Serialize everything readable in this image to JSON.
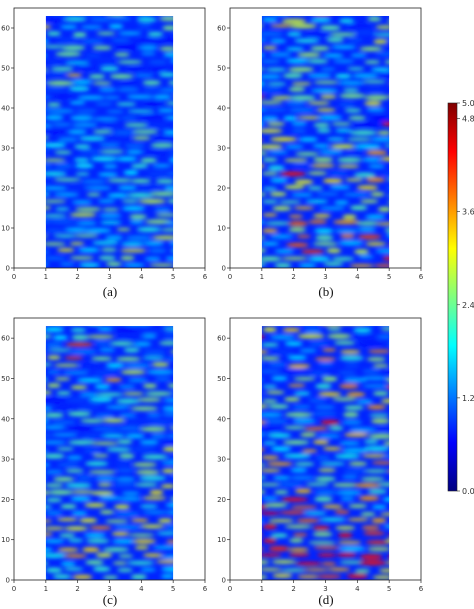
{
  "chart_data": [
    {
      "type": "heatmap",
      "panel_label": "(a)",
      "xlim": [
        0,
        6
      ],
      "ylim": [
        0,
        65
      ],
      "x_extent": [
        1,
        5
      ],
      "y_extent": [
        0,
        63
      ],
      "x_tick_labels": [
        "0",
        "1",
        "2",
        "3",
        "4",
        "5",
        "6"
      ],
      "y_tick_labels": [
        "0",
        "10",
        "20",
        "30",
        "40",
        "50",
        "60"
      ],
      "intensity": 0.35,
      "seed": 11
    },
    {
      "type": "heatmap",
      "panel_label": "(b)",
      "xlim": [
        0,
        6
      ],
      "ylim": [
        0,
        65
      ],
      "x_extent": [
        1,
        5
      ],
      "y_extent": [
        0,
        63
      ],
      "x_tick_labels": [
        "0",
        "1",
        "2",
        "3",
        "4",
        "5",
        "6"
      ],
      "y_tick_labels": [
        "0",
        "10",
        "20",
        "30",
        "40",
        "50",
        "60"
      ],
      "intensity": 0.6,
      "seed": 23
    },
    {
      "type": "heatmap",
      "panel_label": "(c)",
      "xlim": [
        0,
        6
      ],
      "ylim": [
        0,
        65
      ],
      "x_extent": [
        1,
        5
      ],
      "y_extent": [
        0,
        63
      ],
      "x_tick_labels": [
        "0",
        "1",
        "2",
        "3",
        "4",
        "5",
        "6"
      ],
      "y_tick_labels": [
        "0",
        "10",
        "20",
        "30",
        "40",
        "50",
        "60"
      ],
      "intensity": 0.5,
      "seed": 37
    },
    {
      "type": "heatmap",
      "panel_label": "(d)",
      "xlim": [
        0,
        6
      ],
      "ylim": [
        0,
        65
      ],
      "x_extent": [
        1,
        5
      ],
      "y_extent": [
        0,
        63
      ],
      "x_tick_labels": [
        "0",
        "1",
        "2",
        "3",
        "4",
        "5",
        "6"
      ],
      "y_tick_labels": [
        "0",
        "10",
        "20",
        "30",
        "40",
        "50",
        "60"
      ],
      "intensity": 0.85,
      "seed": 51
    }
  ],
  "colorbar": {
    "range": [
      0.0,
      5.0
    ],
    "tick_labels": [
      "0.0",
      "1.2",
      "2.4",
      "3.6",
      "4.8",
      "5.0"
    ],
    "tick_values": [
      0.0,
      1.2,
      2.4,
      3.6,
      4.8,
      5.0
    ],
    "colormap": "jet",
    "colors": [
      "#00007f",
      "#0000ff",
      "#007fff",
      "#00ffff",
      "#7fff7f",
      "#ffff00",
      "#ff7f00",
      "#ff0000",
      "#7f0000"
    ]
  }
}
